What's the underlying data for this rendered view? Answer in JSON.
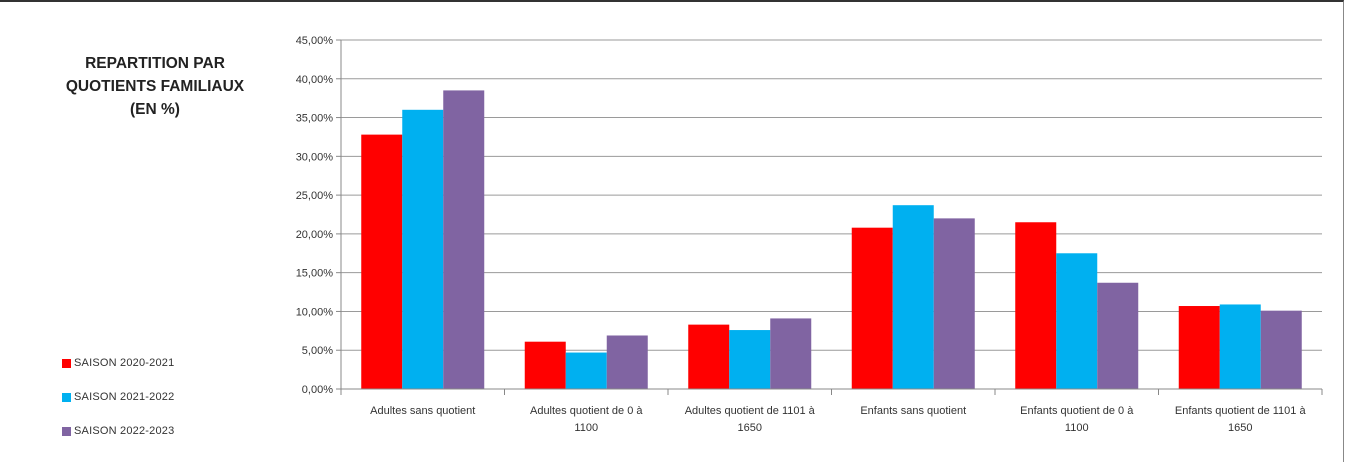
{
  "chart_data": {
    "type": "bar",
    "title": "REPARTITION PAR\nQUOTIENTS FAMILIAUX\n(EN %)",
    "categories": [
      [
        "Adultes sans quotient"
      ],
      [
        "Adultes quotient de 0 à",
        "1100"
      ],
      [
        "Adultes quotient de 1101 à",
        "1650"
      ],
      [
        "Enfants sans quotient"
      ],
      [
        "Enfants quotient de 0 à",
        "1100"
      ],
      [
        "Enfants quotient de 1101 à",
        "1650"
      ]
    ],
    "series": [
      {
        "name": "SAISON 2020-2021",
        "color": "#ff0000",
        "values": [
          32.8,
          6.1,
          8.3,
          20.8,
          21.5,
          10.7
        ]
      },
      {
        "name": "SAISON 2021-2022",
        "color": "#00b0f0",
        "values": [
          36.0,
          4.7,
          7.6,
          23.7,
          17.5,
          10.9
        ]
      },
      {
        "name": "SAISON 2022-2023",
        "color": "#8064a2",
        "values": [
          38.5,
          6.9,
          9.1,
          22.0,
          13.7,
          10.1
        ]
      }
    ],
    "yticks": [
      "0,00%",
      "5,00%",
      "10,00%",
      "15,00%",
      "20,00%",
      "25,00%",
      "30,00%",
      "35,00%",
      "40,00%",
      "45,00%"
    ],
    "ylim": [
      0,
      45
    ],
    "ylabel": "",
    "xlabel": "",
    "grid": true,
    "legend_position": "bottom-left"
  }
}
